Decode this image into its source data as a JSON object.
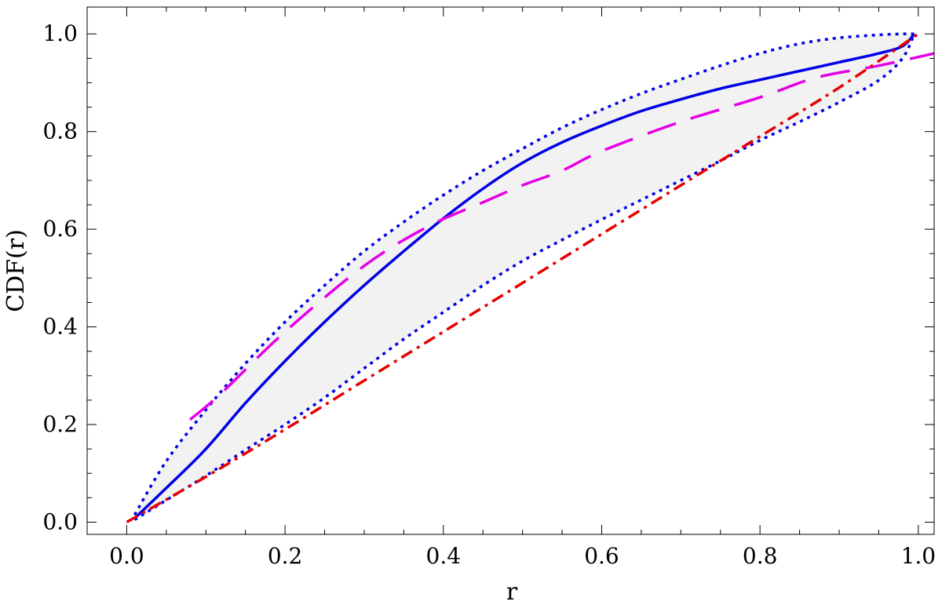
{
  "chart_data": {
    "type": "line",
    "title": "",
    "xlabel": "r",
    "ylabel": "CDF(r)",
    "xlim": [
      -0.05,
      1.02
    ],
    "ylim": [
      -0.025,
      1.055
    ],
    "x_ticks": [
      "0.0",
      "0.2",
      "0.4",
      "0.6",
      "0.8",
      "1.0"
    ],
    "y_ticks": [
      "0.0",
      "0.2",
      "0.4",
      "0.6",
      "0.8",
      "1.0"
    ],
    "grid": false,
    "legend": "none",
    "band": {
      "upper_series": 1,
      "lower_series": 2,
      "fill": "#f2f2f2"
    },
    "series": [
      {
        "style": "solid",
        "color": "#0000e6",
        "x": [
          0.01,
          0.05,
          0.1,
          0.15,
          0.2,
          0.25,
          0.3,
          0.35,
          0.4,
          0.45,
          0.5,
          0.55,
          0.6,
          0.65,
          0.7,
          0.75,
          0.8,
          0.85,
          0.9,
          0.95,
          0.98,
          0.995
        ],
        "y": [
          0.008,
          0.07,
          0.15,
          0.244,
          0.33,
          0.41,
          0.485,
          0.555,
          0.622,
          0.683,
          0.736,
          0.778,
          0.812,
          0.842,
          0.866,
          0.888,
          0.906,
          0.924,
          0.942,
          0.96,
          0.975,
          1.0
        ]
      },
      {
        "style": "dotted",
        "color": "#0000e6",
        "x": [
          0.01,
          0.05,
          0.1,
          0.15,
          0.2,
          0.25,
          0.3,
          0.35,
          0.4,
          0.45,
          0.5,
          0.55,
          0.6,
          0.65,
          0.7,
          0.75,
          0.8,
          0.85,
          0.9,
          0.95,
          0.98,
          0.995
        ],
        "y": [
          0.015,
          0.125,
          0.23,
          0.325,
          0.41,
          0.485,
          0.555,
          0.615,
          0.67,
          0.72,
          0.765,
          0.808,
          0.845,
          0.878,
          0.907,
          0.935,
          0.96,
          0.98,
          0.992,
          0.998,
          1.0,
          1.0
        ]
      },
      {
        "style": "dotted",
        "color": "#0000e6",
        "x": [
          0.01,
          0.05,
          0.1,
          0.15,
          0.2,
          0.25,
          0.3,
          0.35,
          0.4,
          0.45,
          0.5,
          0.55,
          0.6,
          0.65,
          0.7,
          0.75,
          0.8,
          0.85,
          0.9,
          0.95,
          0.98,
          0.995
        ],
        "y": [
          0.005,
          0.045,
          0.095,
          0.148,
          0.2,
          0.255,
          0.315,
          0.375,
          0.43,
          0.485,
          0.535,
          0.578,
          0.62,
          0.66,
          0.7,
          0.74,
          0.782,
          0.82,
          0.86,
          0.905,
          0.95,
          1.0
        ]
      },
      {
        "style": "dashed",
        "color": "#e600e6",
        "x": [
          0.08,
          0.12,
          0.2,
          0.3,
          0.38,
          0.45,
          0.5,
          0.55,
          0.6,
          0.7,
          0.8,
          0.87,
          0.95,
          1.02
        ],
        "y": [
          0.21,
          0.265,
          0.39,
          0.525,
          0.605,
          0.655,
          0.69,
          0.72,
          0.76,
          0.82,
          0.87,
          0.91,
          0.935,
          0.96
        ]
      },
      {
        "style": "dashdot",
        "color": "#e60000",
        "x": [
          0,
          0.1,
          0.2,
          0.3,
          0.4,
          0.5,
          0.6,
          0.7,
          0.8,
          0.9,
          1.0
        ],
        "y": [
          0,
          0.093,
          0.19,
          0.29,
          0.39,
          0.49,
          0.59,
          0.69,
          0.79,
          0.89,
          1.0
        ]
      }
    ]
  }
}
